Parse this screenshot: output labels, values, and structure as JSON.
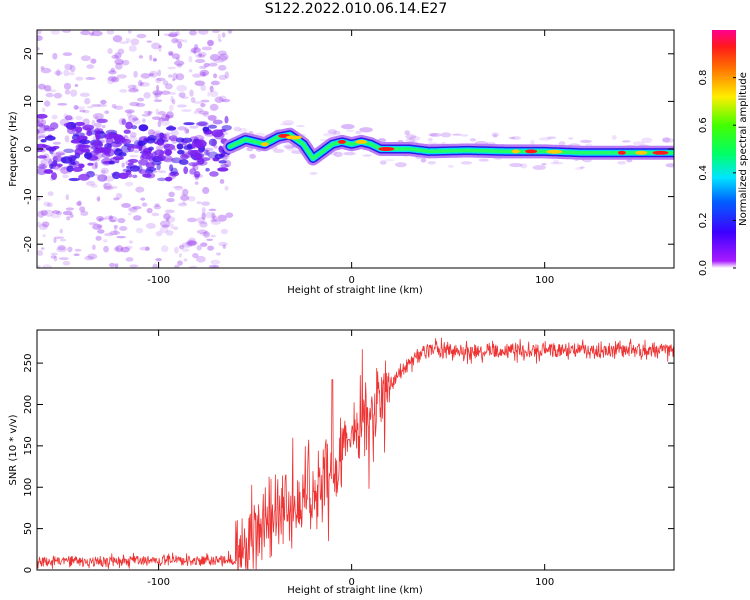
{
  "title": "S122.2022.010.06.14.E27",
  "colors": {
    "snr_line": "#ee3333",
    "spectro_scatter": "#9b3ff0",
    "spectro_track_core": "#ff1a1a"
  },
  "chart_data": [
    {
      "type": "heatmap",
      "name": "spectrogram",
      "xlabel": "Height of straight line (km)",
      "ylabel": "Frequency (Hz)",
      "xlim": [
        -163,
        167
      ],
      "ylim": [
        -25,
        25
      ],
      "xticks": [
        -100,
        0,
        100
      ],
      "xtick_labels": [
        "-100",
        "0",
        "100"
      ],
      "yticks": [
        -20,
        -10,
        0,
        10,
        20
      ],
      "ytick_labels": [
        "-20",
        "-10",
        "0",
        "10",
        "20"
      ],
      "grid": false,
      "colorbar": {
        "label": "Normalized spectral amplitude",
        "range": [
          0.0,
          1.0
        ],
        "ticks": [
          0.0,
          0.2,
          0.4,
          0.6,
          0.8
        ],
        "tick_labels": [
          "0.0",
          "0.2",
          "0.4",
          "0.6",
          "0.8"
        ],
        "colormap": "gist_rainbow_r"
      },
      "noise_region_x": [
        -163,
        -63
      ],
      "track": {
        "x": [
          -63,
          -55,
          -45,
          -38,
          -32,
          -25,
          -20,
          -15,
          -10,
          -5,
          0,
          5,
          10,
          15,
          20,
          30,
          40,
          60,
          80,
          100,
          120,
          140,
          167
        ],
        "freq": [
          0.5,
          2,
          1,
          2.5,
          3,
          1,
          -2,
          -0.5,
          1,
          1.5,
          1,
          1.5,
          1,
          0,
          0,
          0,
          -0.5,
          -0.3,
          -0.5,
          -0.5,
          -0.8,
          -0.8,
          -0.8
        ]
      }
    },
    {
      "type": "line",
      "name": "snr",
      "xlabel": "Height of straight line (km)",
      "ylabel": "SNR (10 * v/v)",
      "xlim": [
        -163,
        167
      ],
      "ylim": [
        0,
        290
      ],
      "xticks": [
        -100,
        0,
        100
      ],
      "xtick_labels": [
        "-100",
        "0",
        "100"
      ],
      "yticks": [
        0,
        50,
        100,
        150,
        200,
        250
      ],
      "ytick_labels": [
        "0",
        "50",
        "100",
        "150",
        "200",
        "250"
      ],
      "grid": false,
      "trend": {
        "x": [
          -163,
          -60,
          -55,
          -50,
          -45,
          -40,
          -30,
          -20,
          -10,
          0,
          10,
          20,
          30,
          40,
          60,
          80,
          100,
          120,
          140,
          167
        ],
        "y": [
          10,
          12,
          20,
          45,
          55,
          65,
          85,
          100,
          125,
          155,
          190,
          225,
          252,
          266,
          264,
          266,
          266,
          266,
          265,
          266
        ]
      },
      "peak_value": 230,
      "peak_x": -10
    }
  ]
}
